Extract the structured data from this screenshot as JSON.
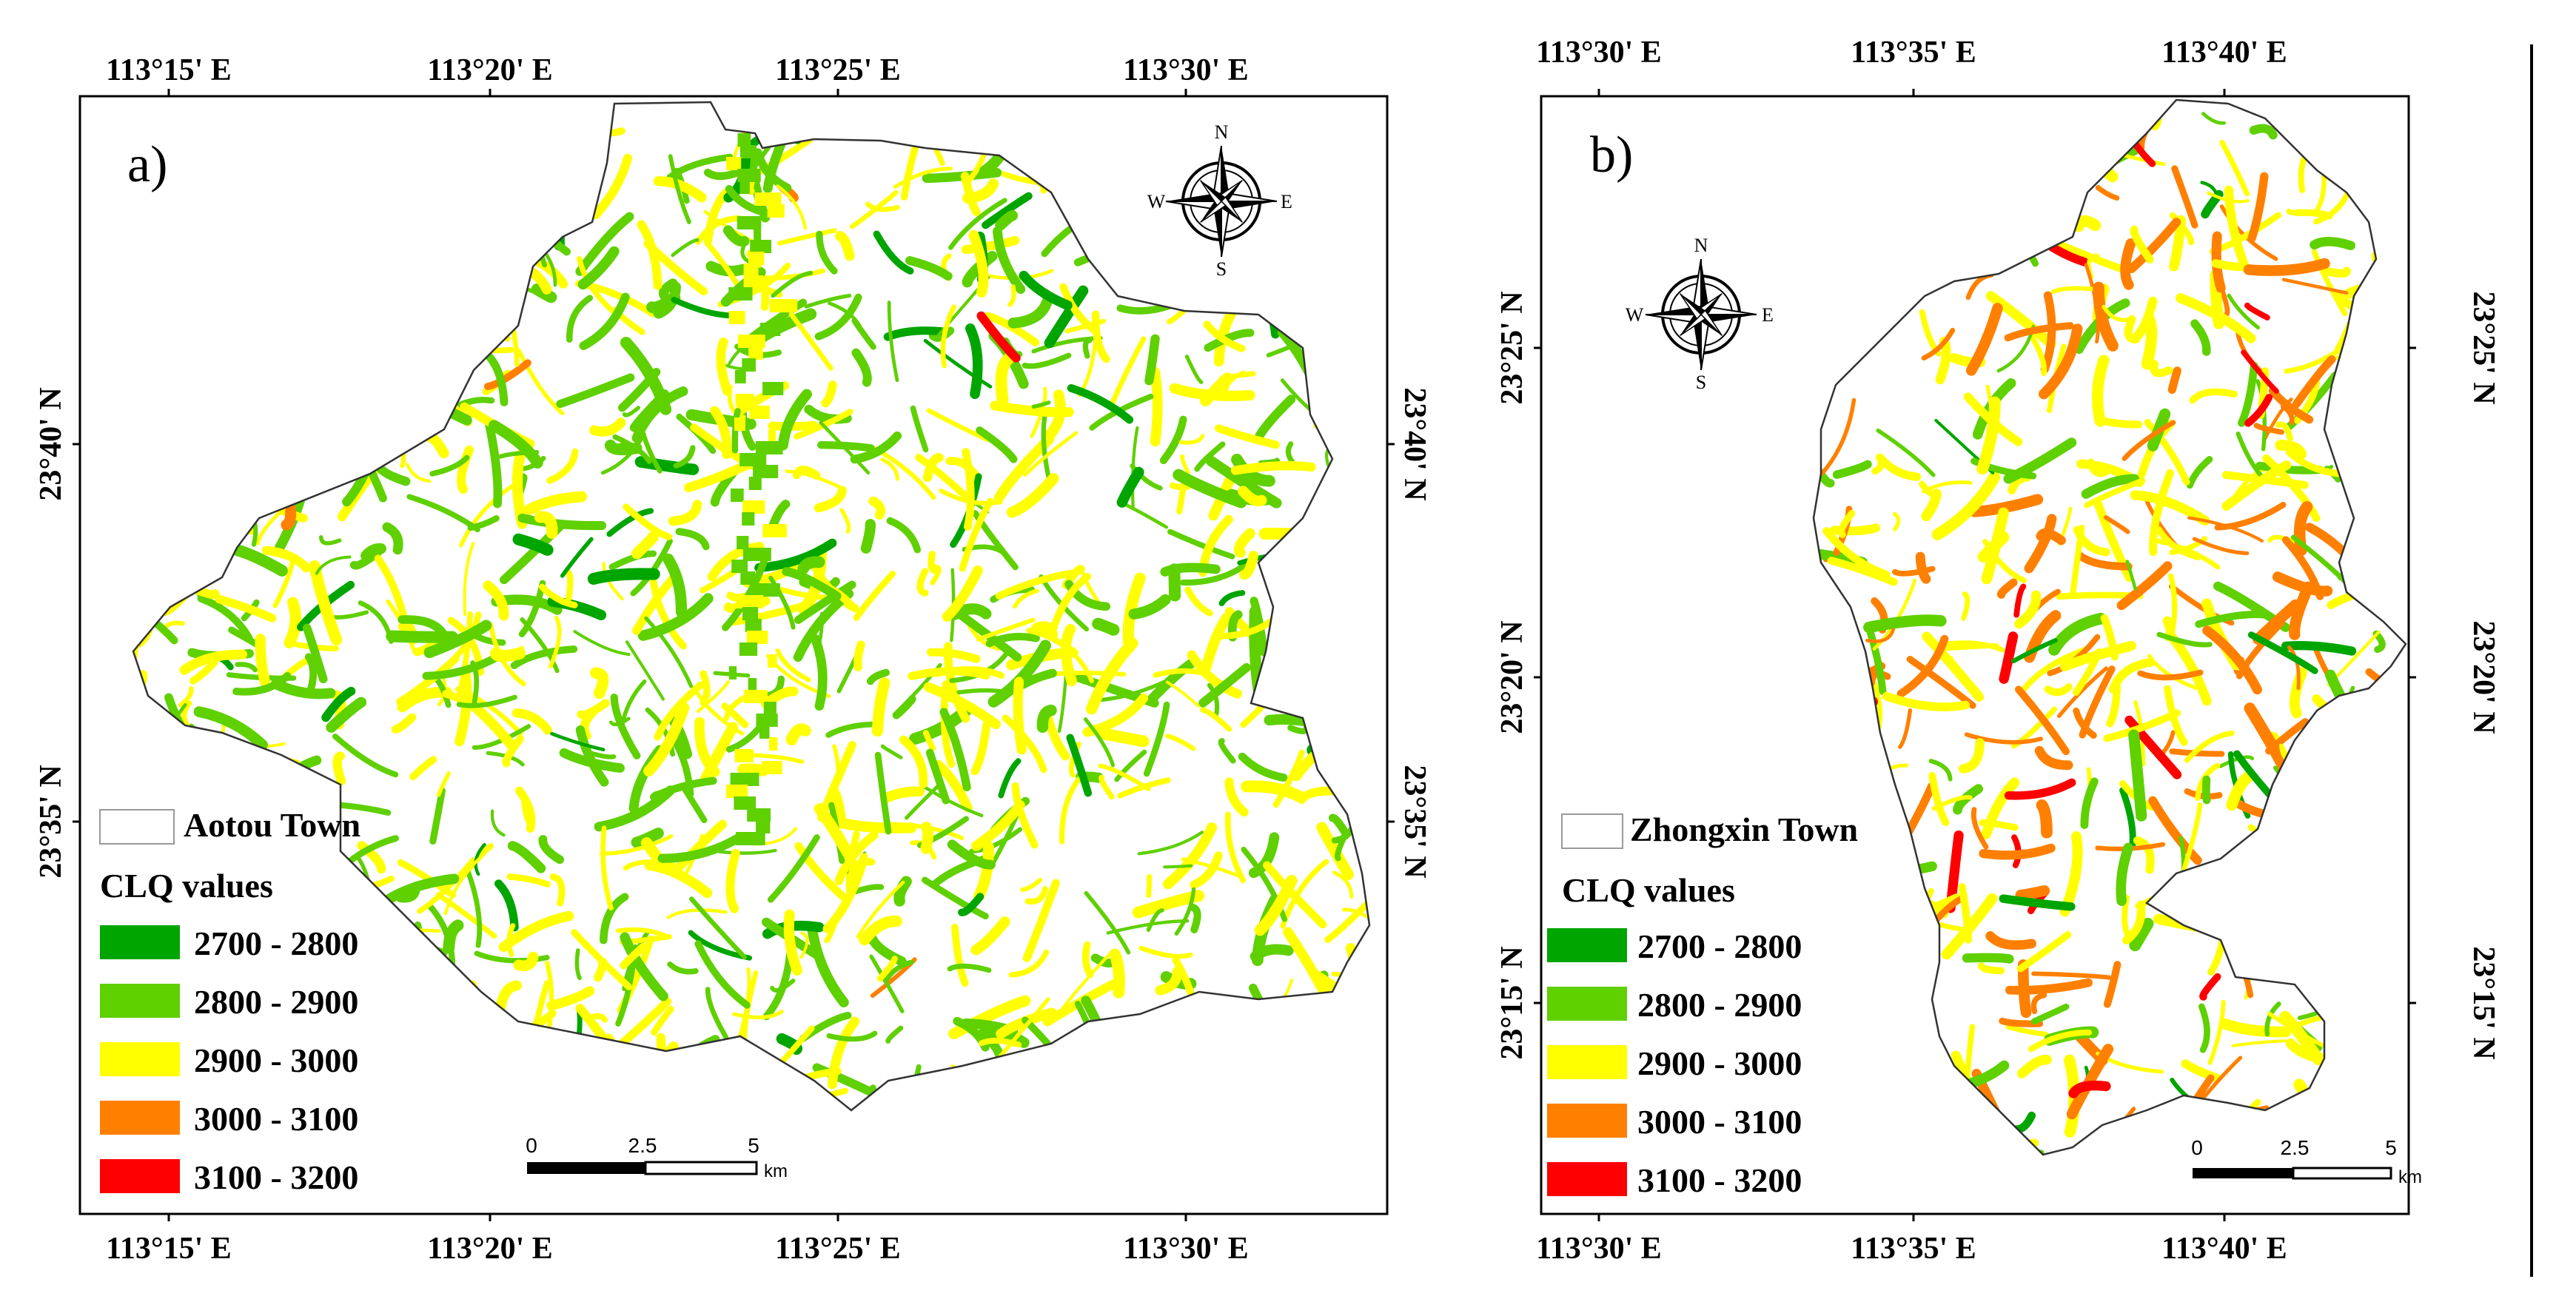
{
  "panels": [
    {
      "id": "a",
      "panel_label": "a)",
      "town_name": "Aotou Town",
      "top_longitudes": [
        "113°15' E",
        "113°20' E",
        "113°25' E",
        "113°30' E"
      ],
      "bottom_longitudes": [
        "113°15' E",
        "113°20' E",
        "113°25' E",
        "113°30' E"
      ],
      "left_latitudes": [
        "23°40' N",
        "23°35' N"
      ],
      "right_latitudes": [
        "23°40' N",
        "23°35' N"
      ],
      "compass": {
        "n": "N",
        "s": "S",
        "e": "E",
        "w": "W"
      },
      "scale_bar": {
        "ticks": [
          "0",
          "2.5",
          "5"
        ],
        "unit": "km"
      }
    },
    {
      "id": "b",
      "panel_label": "b)",
      "town_name": "Zhongxin Town",
      "top_longitudes": [
        "113°30' E",
        "113°35' E",
        "113°40' E"
      ],
      "bottom_longitudes": [
        "113°30' E",
        "113°35' E",
        "113°40' E"
      ],
      "left_latitudes": [
        "23°25' N",
        "23°20' N",
        "23°15' N"
      ],
      "right_latitudes": [
        "23°25' N",
        "23°20' N",
        "23°15' N"
      ],
      "compass": {
        "n": "N",
        "s": "S",
        "e": "E",
        "w": "W"
      },
      "scale_bar": {
        "ticks": [
          "0",
          "2.5",
          "5"
        ],
        "unit": "km"
      }
    }
  ],
  "legend": {
    "title": "CLQ values",
    "classes": [
      {
        "label": "2700 - 2800",
        "color": "#00a500"
      },
      {
        "label": "2800 - 2900",
        "color": "#5fd000"
      },
      {
        "label": "2900 - 3000",
        "color": "#ffff00"
      },
      {
        "label": "3000 - 3100",
        "color": "#ff8000"
      },
      {
        "label": "3100 - 3200",
        "color": "#ff0000"
      }
    ]
  }
}
